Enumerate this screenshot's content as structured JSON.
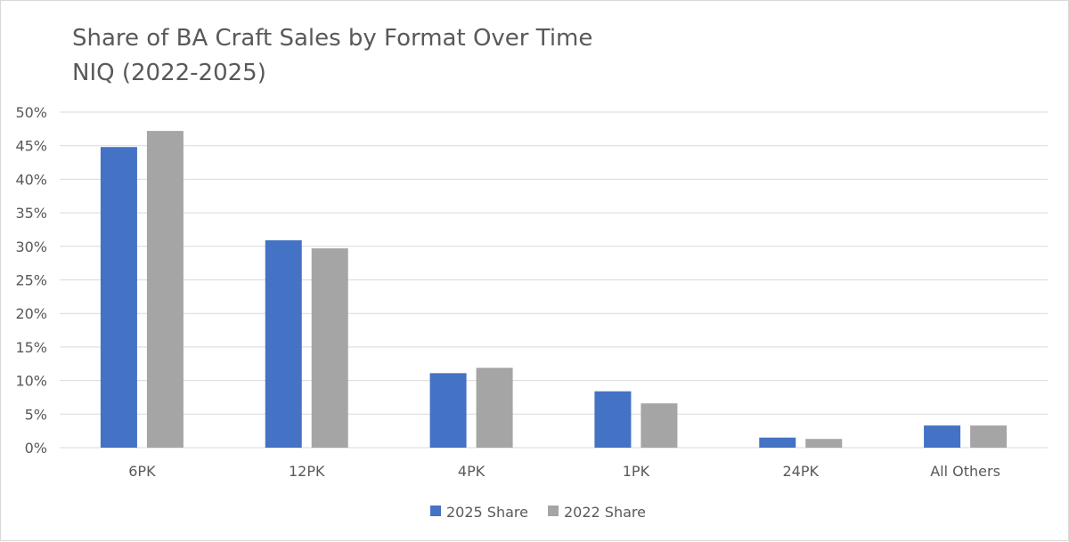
{
  "chart_data": {
    "type": "bar",
    "title": "Share of BA Craft Sales by Format Over Time",
    "subtitle": "NIQ (2022-2025)",
    "categories": [
      "6PK",
      "12PK",
      "4PK",
      "1PK",
      "24PK",
      "All Others"
    ],
    "series": [
      {
        "name": "2025 Share",
        "color": "#4472c4",
        "values": [
          44.8,
          30.9,
          11.1,
          8.4,
          1.5,
          3.3
        ]
      },
      {
        "name": "2022 Share",
        "color": "#a5a5a5",
        "values": [
          47.2,
          29.7,
          11.9,
          6.6,
          1.3,
          3.3
        ]
      }
    ],
    "ylim": [
      0,
      50
    ],
    "yticks": [
      "0%",
      "5%",
      "10%",
      "15%",
      "20%",
      "25%",
      "30%",
      "35%",
      "40%",
      "45%",
      "50%"
    ],
    "xlabel": "",
    "ylabel": "",
    "grid": true,
    "legend_position": "bottom"
  }
}
